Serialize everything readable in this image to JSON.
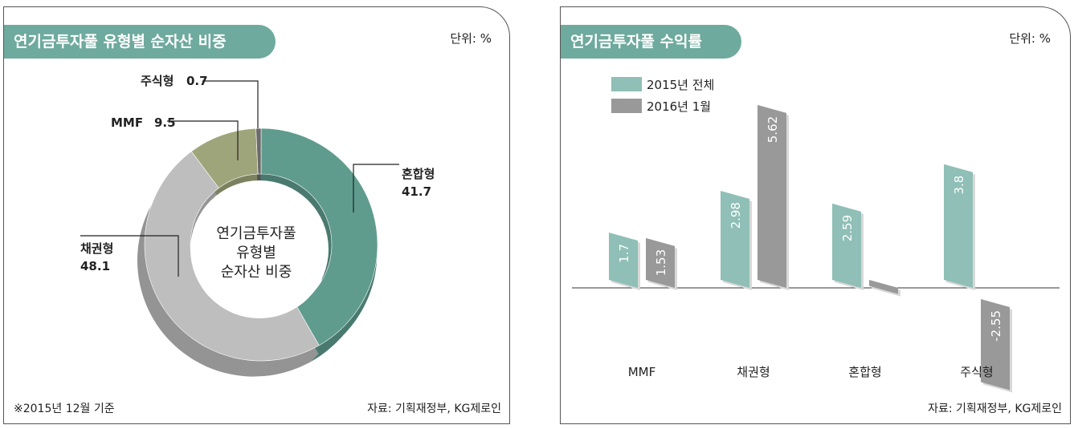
{
  "left_panel": {
    "title": "연기금투자풀 유형별 순자산 비중",
    "unit": "단위: %",
    "note": "※2015년 12월 기준",
    "source": "자료: 기획재정부, KG제로인",
    "center_label": [
      "연기금투자풀",
      "유형별",
      "순자산  비중"
    ]
  },
  "right_panel": {
    "title": "연기금투자풀 수익률",
    "unit": "단위: %",
    "source": "자료: 기획재정부, KG제로인"
  },
  "colors": {
    "title_bg": "#6eaa9e",
    "mixed": "#5f9c8e",
    "bond": "#bebebe",
    "mmf": "#9fa57a",
    "stock": "#6a6a6a",
    "series_2015": "#8fbfb6",
    "series_2016": "#999999"
  },
  "chart_data": [
    {
      "type": "pie",
      "title": "연기금투자풀 유형별 순자산 비중",
      "unit": "%",
      "as_of": "2015년 12월",
      "slices": [
        {
          "label": "혼합형",
          "value": 41.7
        },
        {
          "label": "채권형",
          "value": 48.1
        },
        {
          "label": "MMF",
          "value": 9.5
        },
        {
          "label": "주식형",
          "value": 0.7
        }
      ]
    },
    {
      "type": "bar",
      "title": "연기금투자풀 수익률",
      "unit": "%",
      "categories": [
        "MMF",
        "채권형",
        "혼합형",
        "주식형"
      ],
      "series": [
        {
          "name": "2015년  전체",
          "values": [
            1.7,
            2.98,
            2.59,
            3.8
          ]
        },
        {
          "name": "2016년  1월",
          "values": [
            1.53,
            5.62,
            0.06,
            -2.55
          ]
        }
      ],
      "legend": "top-left"
    }
  ]
}
